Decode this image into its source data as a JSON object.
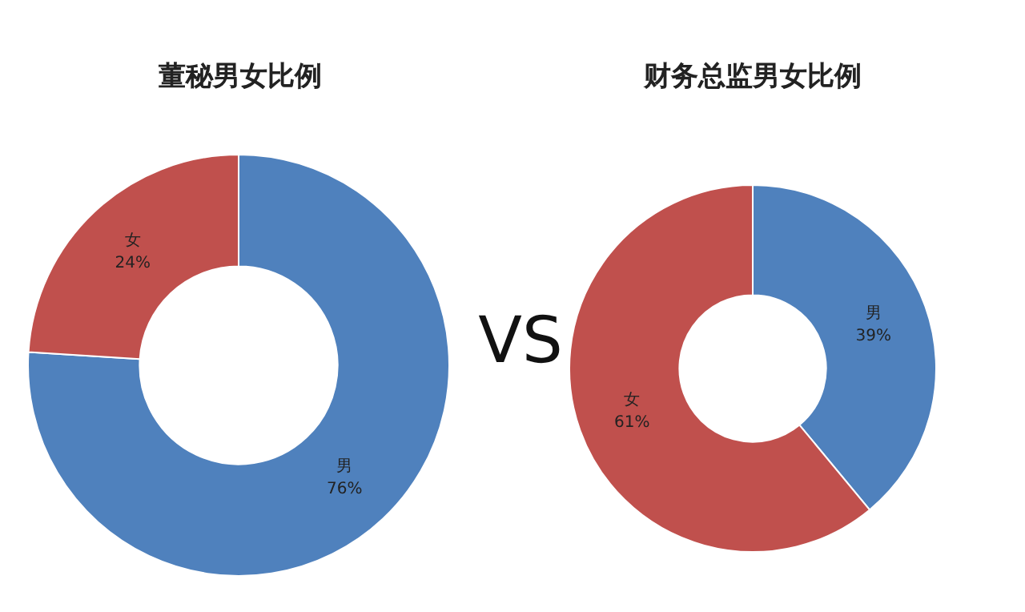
{
  "chart_data": [
    {
      "type": "donut",
      "title": "董秘男女比例",
      "categories": [
        "男",
        "女"
      ],
      "values": [
        76,
        24
      ],
      "colors": [
        "#4f81bd",
        "#c0504d"
      ],
      "value_labels": [
        "76%",
        "24%"
      ],
      "annotations": [
        "VS"
      ]
    },
    {
      "type": "donut",
      "title": "财务总监男女比例",
      "categories": [
        "男",
        "女"
      ],
      "values": [
        39,
        61
      ],
      "colors": [
        "#4f81bd",
        "#c0504d"
      ],
      "value_labels": [
        "39%",
        "61%"
      ]
    }
  ]
}
